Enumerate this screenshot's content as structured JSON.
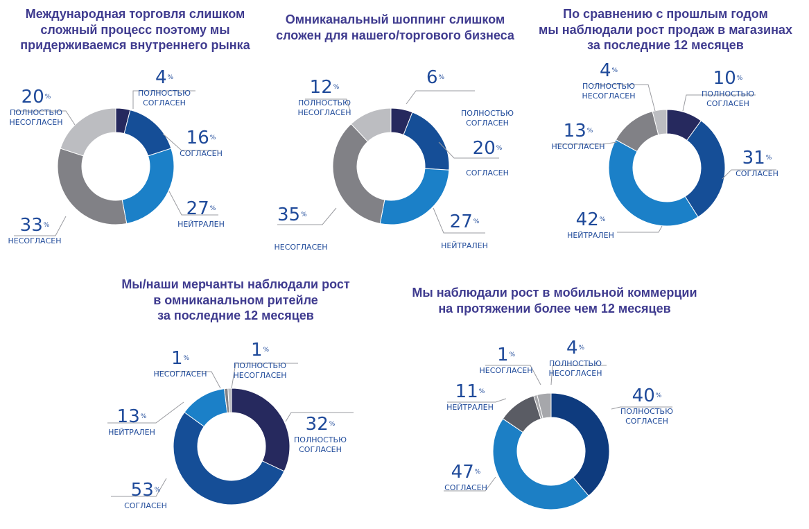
{
  "chart_data": [
    {
      "type": "pie",
      "title": "Международная торговля слишком\nсложный процесс поэтому мы\nпридерживаемся внутреннего рынка",
      "slices": [
        {
          "label": "ПОЛНОСТЬЮ СОГЛАСЕН",
          "value": 4,
          "color": "#26295e"
        },
        {
          "label": "СОГЛАСЕН",
          "value": 16,
          "color": "#154e97"
        },
        {
          "label": "НЕЙТРАЛЕН",
          "value": 27,
          "color": "#1b80c8"
        },
        {
          "label": "НЕСОГЛАСЕН",
          "value": 33,
          "color": "#818186"
        },
        {
          "label": "ПОЛНОСТЬЮ НЕСОГЛАСЕН",
          "value": 20,
          "color": "#bcbdc1"
        }
      ],
      "labels": [
        {
          "value": "4",
          "text": "ПОЛНОСТЬЮ\nСОГЛАСЕН"
        },
        {
          "value": "16",
          "text": "СОГЛАСЕН"
        },
        {
          "value": "27",
          "text": "НЕЙТРАЛЕН"
        },
        {
          "value": "33",
          "text": "НЕСОГЛАСЕН"
        },
        {
          "value": "20",
          "text": "ПОЛНОСТЬЮ\nНЕСОГЛАСЕН"
        }
      ]
    },
    {
      "type": "pie",
      "title": "Омниканальный шоппинг слишком\nсложен для нашего/торгового бизнеса",
      "slices": [
        {
          "label": "ПОЛНОСТЬЮ СОГЛАСЕН",
          "value": 6,
          "color": "#26295e"
        },
        {
          "label": "СОГЛАСЕН",
          "value": 20,
          "color": "#154e97"
        },
        {
          "label": "НЕЙТРАЛЕН",
          "value": 27,
          "color": "#1b80c8"
        },
        {
          "label": "НЕСОГЛАСЕН",
          "value": 35,
          "color": "#818186"
        },
        {
          "label": "ПОЛНОСТЬЮ НЕСОГЛАСЕН",
          "value": 12,
          "color": "#bcbdc1"
        }
      ],
      "labels": [
        {
          "value": "6",
          "text": ""
        },
        {
          "value": "",
          "text": "ПОЛНОСТЬЮ\nСОГЛАСЕН"
        },
        {
          "value": "20",
          "text": "СОГЛАСЕН"
        },
        {
          "value": "27",
          "text": "НЕЙТРАЛЕН"
        },
        {
          "value": "35",
          "text": ""
        },
        {
          "value": "",
          "text": "НЕСОГЛАСЕН"
        },
        {
          "value": "12",
          "text": "ПОЛНОСТЬЮ\nНЕСОГЛАСЕН"
        }
      ]
    },
    {
      "type": "pie",
      "title": "По сравнению с прошлым годом\nмы наблюдали рост продаж в магазинах\nза последние 12 месяцев",
      "slices": [
        {
          "label": "ПОЛНОСТЬЮ СОГЛАСЕН",
          "value": 10,
          "color": "#26295e"
        },
        {
          "label": "СОГЛАСЕН",
          "value": 31,
          "color": "#154e97"
        },
        {
          "label": "НЕЙТРАЛЕН",
          "value": 42,
          "color": "#1b80c8"
        },
        {
          "label": "НЕСОГЛАСЕН",
          "value": 13,
          "color": "#818186"
        },
        {
          "label": "ПОЛНОСТЬЮ НЕСОГЛАСЕН",
          "value": 4,
          "color": "#bcbdc1"
        }
      ],
      "labels": [
        {
          "value": "10",
          "text": "ПОЛНОСТЬЮ\nСОГЛАСЕН"
        },
        {
          "value": "31",
          "text": "СОГЛАСЕН"
        },
        {
          "value": "42",
          "text": "НЕЙТРАЛЕН"
        },
        {
          "value": "13",
          "text": "НЕСОГЛАСЕН"
        },
        {
          "value": "4",
          "text": "ПОЛНОСТЬЮ\nНЕСОГЛАСЕН"
        }
      ]
    },
    {
      "type": "pie",
      "title": "Мы/наши мерчанты наблюдали рост\nв омниканальном ритейле\nза последние 12 месяцев",
      "slices": [
        {
          "label": "ПОЛНОСТЬЮ СОГЛАСЕН",
          "value": 32,
          "color": "#26295e"
        },
        {
          "label": "СОГЛАСЕН",
          "value": 53,
          "color": "#154e97"
        },
        {
          "label": "НЕЙТРАЛЕН",
          "value": 13,
          "color": "#1b80c8"
        },
        {
          "label": "НЕСОГЛАСЕН",
          "value": 1,
          "color": "#818186"
        },
        {
          "label": "ПОЛНОСТЬЮ НЕСОГЛАСЕН",
          "value": 1,
          "color": "#bcbdc1"
        }
      ],
      "labels": [
        {
          "value": "32",
          "text": "ПОЛНОСТЬЮ\nСОГЛАСЕН"
        },
        {
          "value": "53",
          "text": "СОГЛАСЕН"
        },
        {
          "value": "13",
          "text": "НЕЙТРАЛЕН"
        },
        {
          "value": "1",
          "text": "НЕСОГЛАСЕН"
        },
        {
          "value": "1",
          "text": "ПОЛНОСТЬЮ\nНЕСОГЛАСЕН"
        }
      ]
    },
    {
      "type": "pie",
      "title": "Мы наблюдали рост в мобильной коммерции\nна протяжении более чем 12 месяцев",
      "slices": [
        {
          "label": "ПОЛНОСТЬЮ СОГЛАСЕН",
          "value": 40,
          "color": "#0e3b7e"
        },
        {
          "label": "СОГЛАСЕН",
          "value": 47,
          "color": "#1c7fc5"
        },
        {
          "label": "НЕЙТРАЛЕН",
          "value": 11,
          "color": "#5a5c64"
        },
        {
          "label": "НЕСОГЛАСЕН",
          "value": 1,
          "color": "#a6a7ab"
        },
        {
          "label": "ПОЛНОСТЬЮ НЕСОГЛАСЕН",
          "value": 4,
          "color": "#a6a7ab"
        }
      ],
      "labels": [
        {
          "value": "40",
          "text": "ПОЛНОСТЬЮ\nСОГЛАСЕН"
        },
        {
          "value": "47",
          "text": "СОГЛАСЕН"
        },
        {
          "value": "11",
          "text": "НЕЙТРАЛЕН"
        },
        {
          "value": "1",
          "text": "НЕСОГЛАСЕН"
        },
        {
          "value": "4",
          "text": "ПОЛНОСТЬЮ\nНЕСОГЛАСЕН"
        }
      ]
    }
  ],
  "percent_sign": "%"
}
